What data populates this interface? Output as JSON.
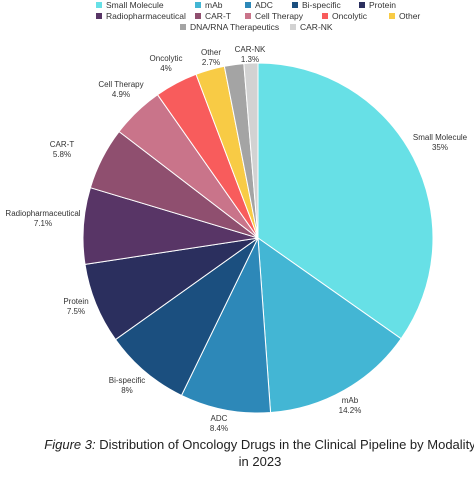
{
  "chart_data": {
    "type": "pie",
    "legend_position": "top",
    "slices": [
      {
        "label": "Small Molecule",
        "value": 35,
        "display": "35%",
        "color": "#67e0e6"
      },
      {
        "label": "mAb",
        "value": 14.2,
        "display": "14.2%",
        "color": "#43b6d4"
      },
      {
        "label": "ADC",
        "value": 8.4,
        "display": "8.4%",
        "color": "#2d88b8"
      },
      {
        "label": "Bi-specific",
        "value": 8,
        "display": "8%",
        "color": "#1b4f7f"
      },
      {
        "label": "Protein",
        "value": 7.5,
        "display": "7.5%",
        "color": "#2b2f5e"
      },
      {
        "label": "Radiopharmaceutical",
        "value": 7.1,
        "display": "7.1%",
        "color": "#583566"
      },
      {
        "label": "CAR-T",
        "value": 5.8,
        "display": "5.8%",
        "color": "#8f4f6f"
      },
      {
        "label": "Cell Therapy",
        "value": 4.9,
        "display": "4.9%",
        "color": "#c9748a"
      },
      {
        "label": "Oncolytic",
        "value": 4,
        "display": "4%",
        "color": "#f85c5c"
      },
      {
        "label": "Other",
        "value": 2.7,
        "display": "2.7%",
        "color": "#f8cb45"
      },
      {
        "label": "DNA/RNA Therapeutics",
        "value": 1.8,
        "display": "",
        "color": "#a4a4a4"
      },
      {
        "label": "CAR-NK",
        "value": 1.3,
        "display": "1.3%",
        "color": "#d2d2d2"
      }
    ]
  },
  "caption": {
    "prefix": "Figure 3:",
    "text": " Distribution of Oncology Drugs in the Clinical Pipeline by Modality in 2023"
  }
}
